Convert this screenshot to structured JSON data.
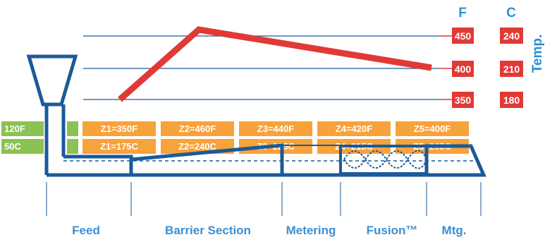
{
  "colors": {
    "blue": "#1c5a9a",
    "label_blue": "#2b8fd0",
    "red": "#e03a36",
    "orange": "#f7a23b",
    "green": "#8cc153",
    "text_blue": "#3b8fd4"
  },
  "units": {
    "fahrenheit": "F",
    "celsius": "C"
  },
  "axis_label": "Temp.",
  "temp_levels": [
    {
      "f": "450",
      "c": "240"
    },
    {
      "f": "400",
      "c": "210"
    },
    {
      "f": "350",
      "c": "180"
    }
  ],
  "feed_temps": {
    "f": "120F",
    "c": "50C"
  },
  "zones": [
    {
      "f": "Z1=350F",
      "c": "Z1=175C"
    },
    {
      "f": "Z2=460F",
      "c": "Z2=240C"
    },
    {
      "f": "Z3=440F",
      "c": "Z3=225C"
    },
    {
      "f": "Z4=420F",
      "c": "Z4=215C"
    },
    {
      "f": "Z5=400F",
      "c": "Z5=205C"
    }
  ],
  "profile_f": [
    350,
    460,
    400
  ],
  "sections": [
    "Feed",
    "Barrier Section",
    "Metering",
    "Fusion™",
    "Mtg."
  ]
}
